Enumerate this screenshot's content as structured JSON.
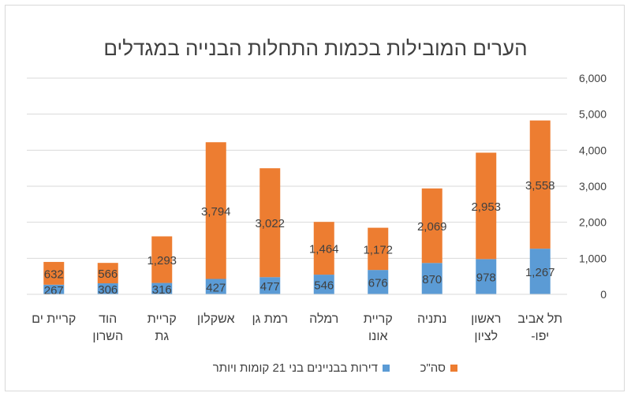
{
  "chart_data": {
    "type": "bar",
    "stacked": true,
    "title": "הערים המובילות בכמות התחלות הבנייה במגדלים",
    "categories": [
      [
        "תל אביב",
        "-יפו"
      ],
      [
        "ראשון",
        "לציון"
      ],
      [
        "נתניה"
      ],
      [
        "קריית",
        "אונו"
      ],
      [
        "רמלה"
      ],
      [
        "רמת גן"
      ],
      [
        "אשקלון"
      ],
      [
        "קריית",
        "גת"
      ],
      [
        "הוד",
        "השרון"
      ],
      [
        "קריית ים"
      ]
    ],
    "series": [
      {
        "name": "דירות בבניינים בני 21 קומות ויותר",
        "color": "#5b9bd5",
        "values": [
          1267,
          978,
          870,
          676,
          546,
          477,
          427,
          316,
          306,
          267
        ],
        "labels": [
          "1,267",
          "978",
          "870",
          "676",
          "546",
          "477",
          "427",
          "316",
          "306",
          "267"
        ]
      },
      {
        "name": "סה\"כ",
        "color": "#ed7d31",
        "values": [
          3558,
          2953,
          2069,
          1172,
          1464,
          3022,
          3794,
          1293,
          566,
          632
        ],
        "labels": [
          "3,558",
          "2,953",
          "2,069",
          "1,172",
          "1,464",
          "3,022",
          "3,794",
          "1,293",
          "566",
          "632"
        ]
      }
    ],
    "ylim": [
      0,
      6000
    ],
    "yticks": [
      0,
      1000,
      2000,
      3000,
      4000,
      5000,
      6000
    ],
    "ytick_labels": [
      "0",
      "1,000",
      "2,000",
      "3,000",
      "4,000",
      "5,000",
      "6,000"
    ],
    "y_axis_side": "right",
    "category_order": "right-to-left",
    "grid": true,
    "legend_position": "bottom",
    "colors": {
      "grid": "#d9d9d9",
      "text": "#404040",
      "title": "#404040"
    }
  }
}
